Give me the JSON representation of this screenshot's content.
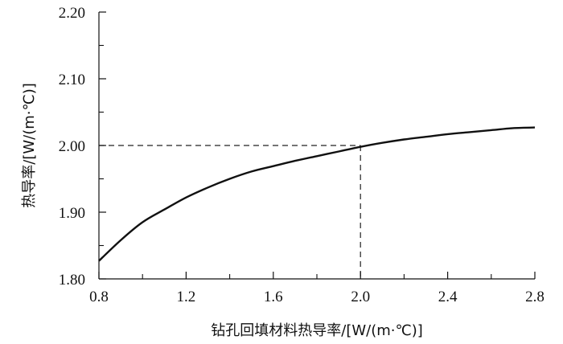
{
  "chart_data": {
    "type": "line",
    "xlabel": "钻孔回填材料热导率/[W/(m·℃)]",
    "ylabel": "热导率/[W/(m·℃)]",
    "xlim": [
      0.8,
      2.8
    ],
    "ylim": [
      1.8,
      2.2
    ],
    "x_ticks": [
      "0.8",
      "1.2",
      "1.6",
      "2.0",
      "2.4",
      "2.8"
    ],
    "x_tick_values": [
      0.8,
      1.2,
      1.6,
      2.0,
      2.4,
      2.8
    ],
    "x_minor_ticks": [
      1.0,
      1.4,
      1.8,
      2.2,
      2.6
    ],
    "y_ticks": [
      "1.80",
      "1.90",
      "2.00",
      "2.10",
      "2.20"
    ],
    "y_tick_values": [
      1.8,
      1.9,
      2.0,
      2.1,
      2.2
    ],
    "y_minor_ticks": [
      1.85,
      1.95,
      2.05,
      2.15
    ],
    "grid": false,
    "series": [
      {
        "x": [
          0.8,
          0.9,
          1.0,
          1.1,
          1.2,
          1.3,
          1.4,
          1.5,
          1.6,
          1.7,
          1.8,
          1.9,
          2.0,
          2.1,
          2.2,
          2.3,
          2.4,
          2.5,
          2.6,
          2.7,
          2.8
        ],
        "y": [
          1.827,
          1.858,
          1.885,
          1.904,
          1.922,
          1.937,
          1.95,
          1.961,
          1.969,
          1.977,
          1.984,
          1.991,
          1.998,
          2.004,
          2.009,
          2.013,
          2.017,
          2.02,
          2.023,
          2.026,
          2.027
        ],
        "color": "#111111"
      }
    ],
    "reference": {
      "x": 2.0,
      "y": 2.0,
      "style": "dashed"
    }
  }
}
